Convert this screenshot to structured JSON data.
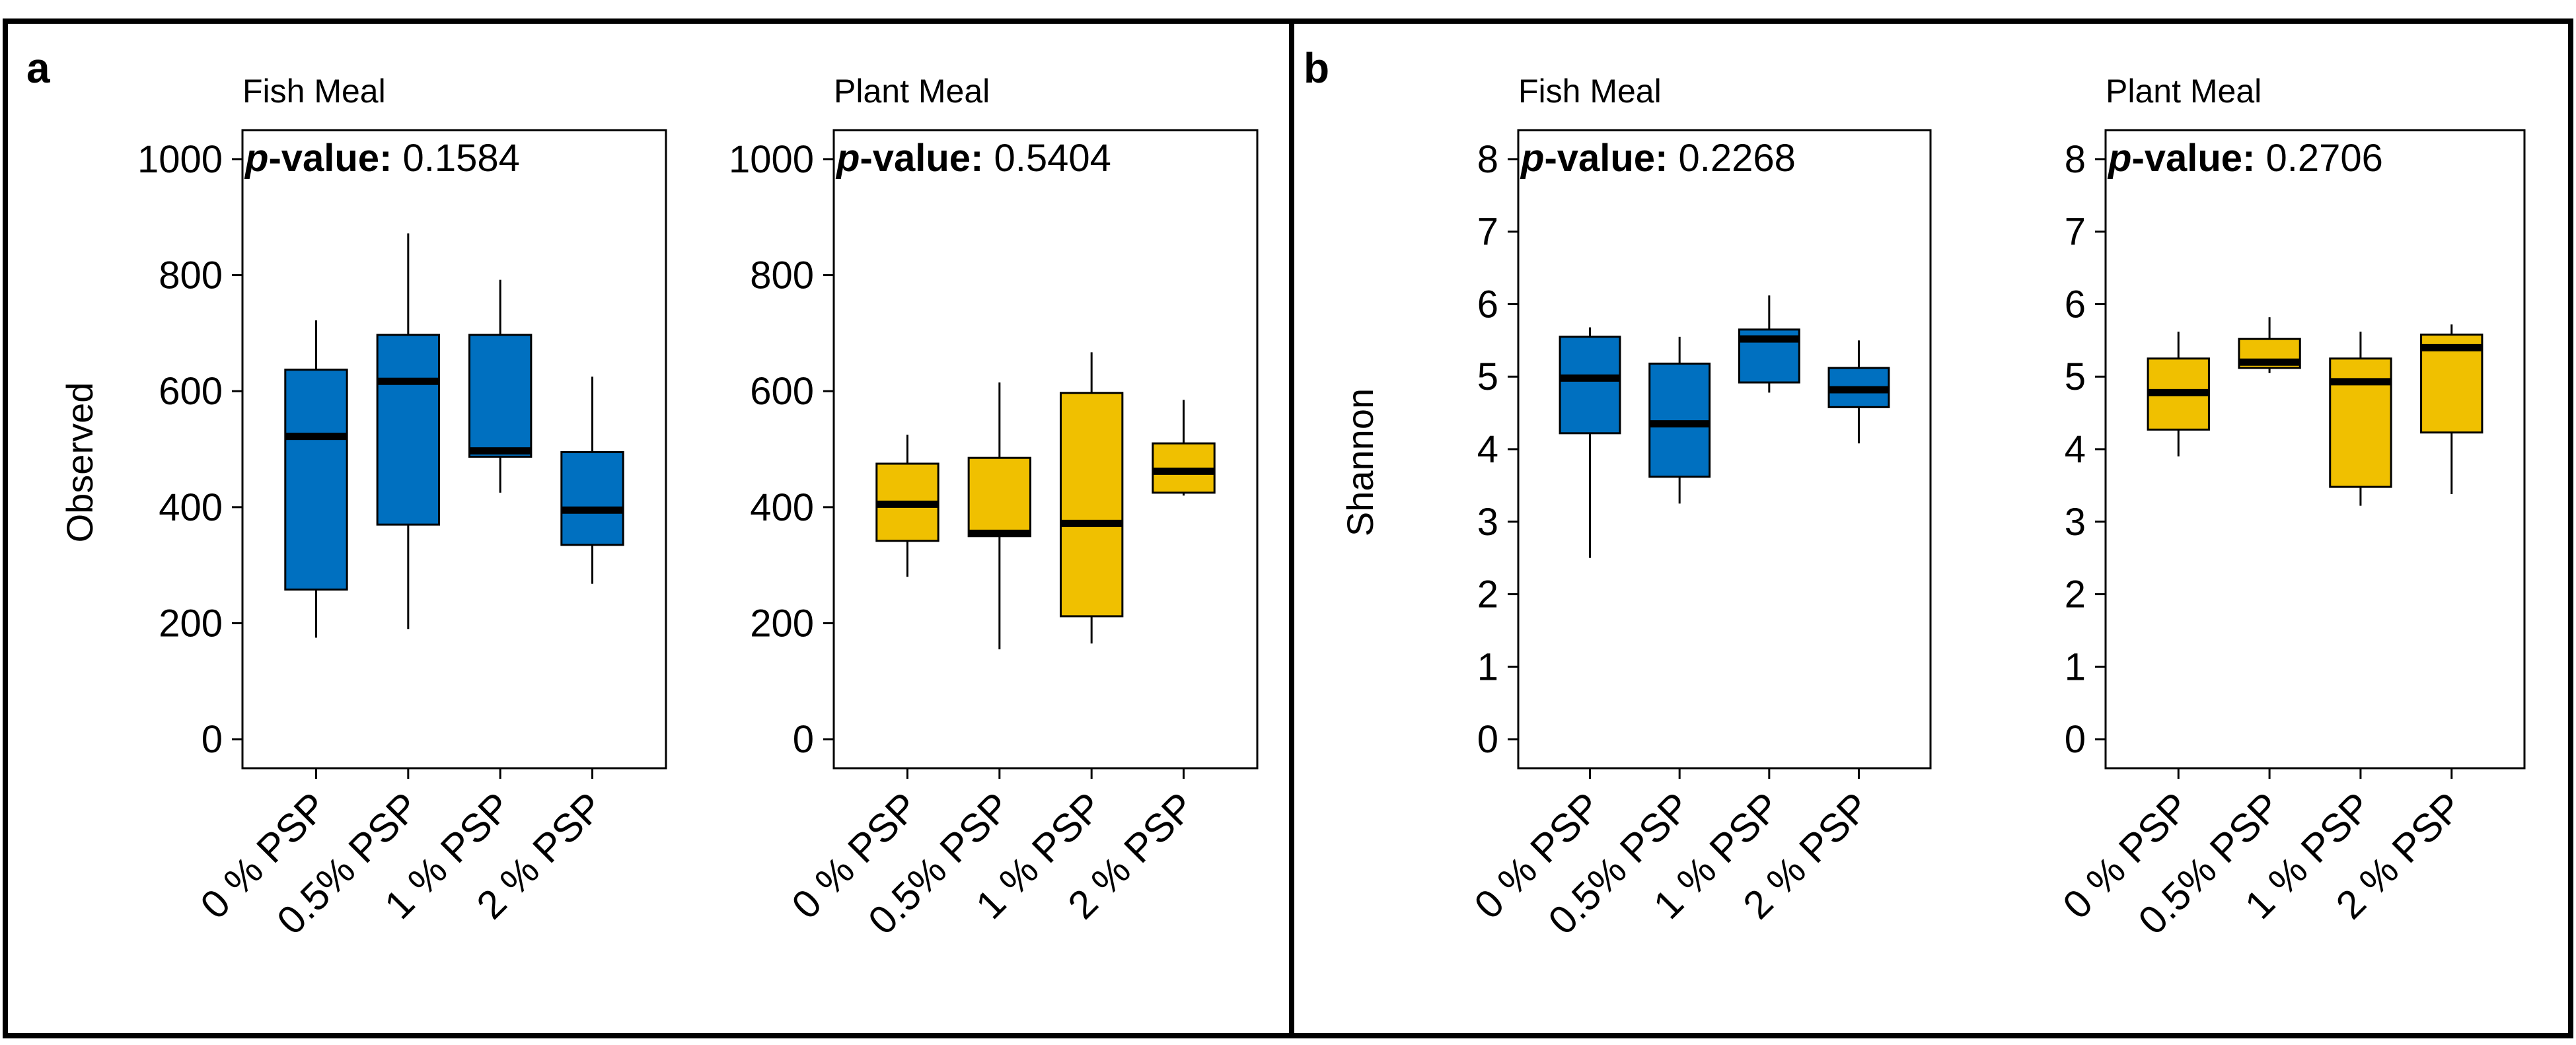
{
  "figure": {
    "panels": [
      {
        "label": "a",
        "y_axis_label": "Observed"
      },
      {
        "label": "b",
        "y_axis_label": "Shannon"
      }
    ]
  },
  "chart_data": [
    {
      "type": "boxplot",
      "panel": "a",
      "title": "Fish Meal",
      "ylabel": "Observed",
      "ylim": [
        -50,
        1050
      ],
      "yticks": [
        0,
        200,
        400,
        600,
        800,
        1000
      ],
      "pvalue_prefix": "p",
      "pvalue_text": "-value: 0.1584",
      "fill_color": "#0070c0",
      "categories": [
        "0 % PSP",
        "0.5% PSP",
        "1 % PSP",
        "2 % PSP"
      ],
      "boxes": [
        {
          "min": 175,
          "q1": 258,
          "median": 522,
          "q3": 637,
          "max": 722
        },
        {
          "min": 190,
          "q1": 370,
          "median": 617,
          "q3": 697,
          "max": 872
        },
        {
          "min": 425,
          "q1": 487,
          "median": 497,
          "q3": 697,
          "max": 792
        },
        {
          "min": 268,
          "q1": 335,
          "median": 395,
          "q3": 495,
          "max": 625
        }
      ]
    },
    {
      "type": "boxplot",
      "panel": "a",
      "title": "Plant Meal",
      "ylabel": "",
      "ylim": [
        -50,
        1050
      ],
      "yticks": [
        0,
        200,
        400,
        600,
        800,
        1000
      ],
      "pvalue_prefix": "p",
      "pvalue_text": "-value: 0.5404",
      "fill_color": "#f0c000",
      "categories": [
        "0 % PSP",
        "0.5% PSP",
        "1 % PSP",
        "2 % PSP"
      ],
      "boxes": [
        {
          "min": 280,
          "q1": 342,
          "median": 405,
          "q3": 475,
          "max": 525
        },
        {
          "min": 155,
          "q1": 350,
          "median": 355,
          "q3": 485,
          "max": 615
        },
        {
          "min": 165,
          "q1": 212,
          "median": 372,
          "q3": 597,
          "max": 667
        },
        {
          "min": 420,
          "q1": 425,
          "median": 462,
          "q3": 510,
          "max": 585
        }
      ]
    },
    {
      "type": "boxplot",
      "panel": "b",
      "title": "Fish Meal",
      "ylabel": "Shannon",
      "ylim": [
        -0.4,
        8.4
      ],
      "yticks": [
        0,
        1,
        2,
        3,
        4,
        5,
        6,
        7,
        8
      ],
      "pvalue_prefix": "p",
      "pvalue_text": "-value: 0.2268",
      "fill_color": "#0070c0",
      "categories": [
        "0 % PSP",
        "0.5% PSP",
        "1 % PSP",
        "2 % PSP"
      ],
      "boxes": [
        {
          "min": 2.5,
          "q1": 4.22,
          "median": 4.98,
          "q3": 5.55,
          "max": 5.68
        },
        {
          "min": 3.25,
          "q1": 3.62,
          "median": 4.35,
          "q3": 5.18,
          "max": 5.55
        },
        {
          "min": 4.78,
          "q1": 4.92,
          "median": 5.52,
          "q3": 5.65,
          "max": 6.12
        },
        {
          "min": 4.08,
          "q1": 4.58,
          "median": 4.82,
          "q3": 5.12,
          "max": 5.5
        }
      ]
    },
    {
      "type": "boxplot",
      "panel": "b",
      "title": "Plant Meal",
      "ylabel": "",
      "ylim": [
        -0.4,
        8.4
      ],
      "yticks": [
        0,
        1,
        2,
        3,
        4,
        5,
        6,
        7,
        8
      ],
      "pvalue_prefix": "p",
      "pvalue_text": "-value: 0.2706",
      "fill_color": "#f0c000",
      "categories": [
        "0 % PSP",
        "0.5% PSP",
        "1 % PSP",
        "2 % PSP"
      ],
      "boxes": [
        {
          "min": 3.9,
          "q1": 4.27,
          "median": 4.78,
          "q3": 5.25,
          "max": 5.62
        },
        {
          "min": 5.05,
          "q1": 5.12,
          "median": 5.2,
          "q3": 5.52,
          "max": 5.82
        },
        {
          "min": 3.22,
          "q1": 3.48,
          "median": 4.93,
          "q3": 5.25,
          "max": 5.62
        },
        {
          "min": 3.38,
          "q1": 4.23,
          "median": 5.4,
          "q3": 5.58,
          "max": 5.72
        }
      ]
    }
  ]
}
